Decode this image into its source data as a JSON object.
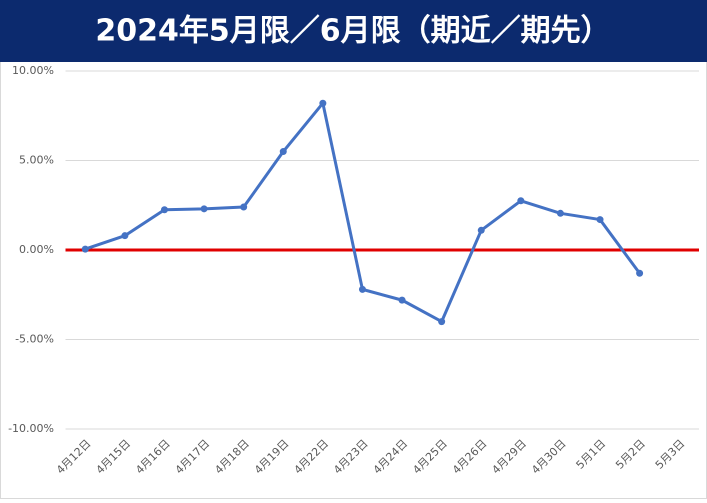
{
  "chart_data": {
    "type": "line",
    "title": "2024年5月限／6月限（期近／期先）",
    "categories": [
      "4月12日",
      "4月15日",
      "4月16日",
      "4月17日",
      "4月18日",
      "4月19日",
      "4月22日",
      "4月23日",
      "4月24日",
      "4月25日",
      "4月26日",
      "4月29日",
      "4月30日",
      "5月1日",
      "5月2日",
      "5月3日"
    ],
    "series": [
      {
        "name": "期近／期先",
        "color": "#4472c4",
        "values": [
          0.05,
          0.8,
          2.25,
          2.3,
          2.4,
          5.5,
          8.2,
          -2.2,
          -2.8,
          -4.0,
          1.1,
          2.75,
          2.05,
          1.7,
          -1.3,
          null
        ]
      }
    ],
    "ylim": [
      -10,
      10
    ],
    "yticks": [
      {
        "value": -10,
        "label": "-10.00%"
      },
      {
        "value": -5,
        "label": "-5.00%"
      },
      {
        "value": 0,
        "label": "0.00%"
      },
      {
        "value": 5,
        "label": "5.00%"
      },
      {
        "value": 10,
        "label": "10.00%"
      }
    ],
    "grid": true,
    "reference_line": {
      "value": 0,
      "color": "#e00000"
    }
  }
}
